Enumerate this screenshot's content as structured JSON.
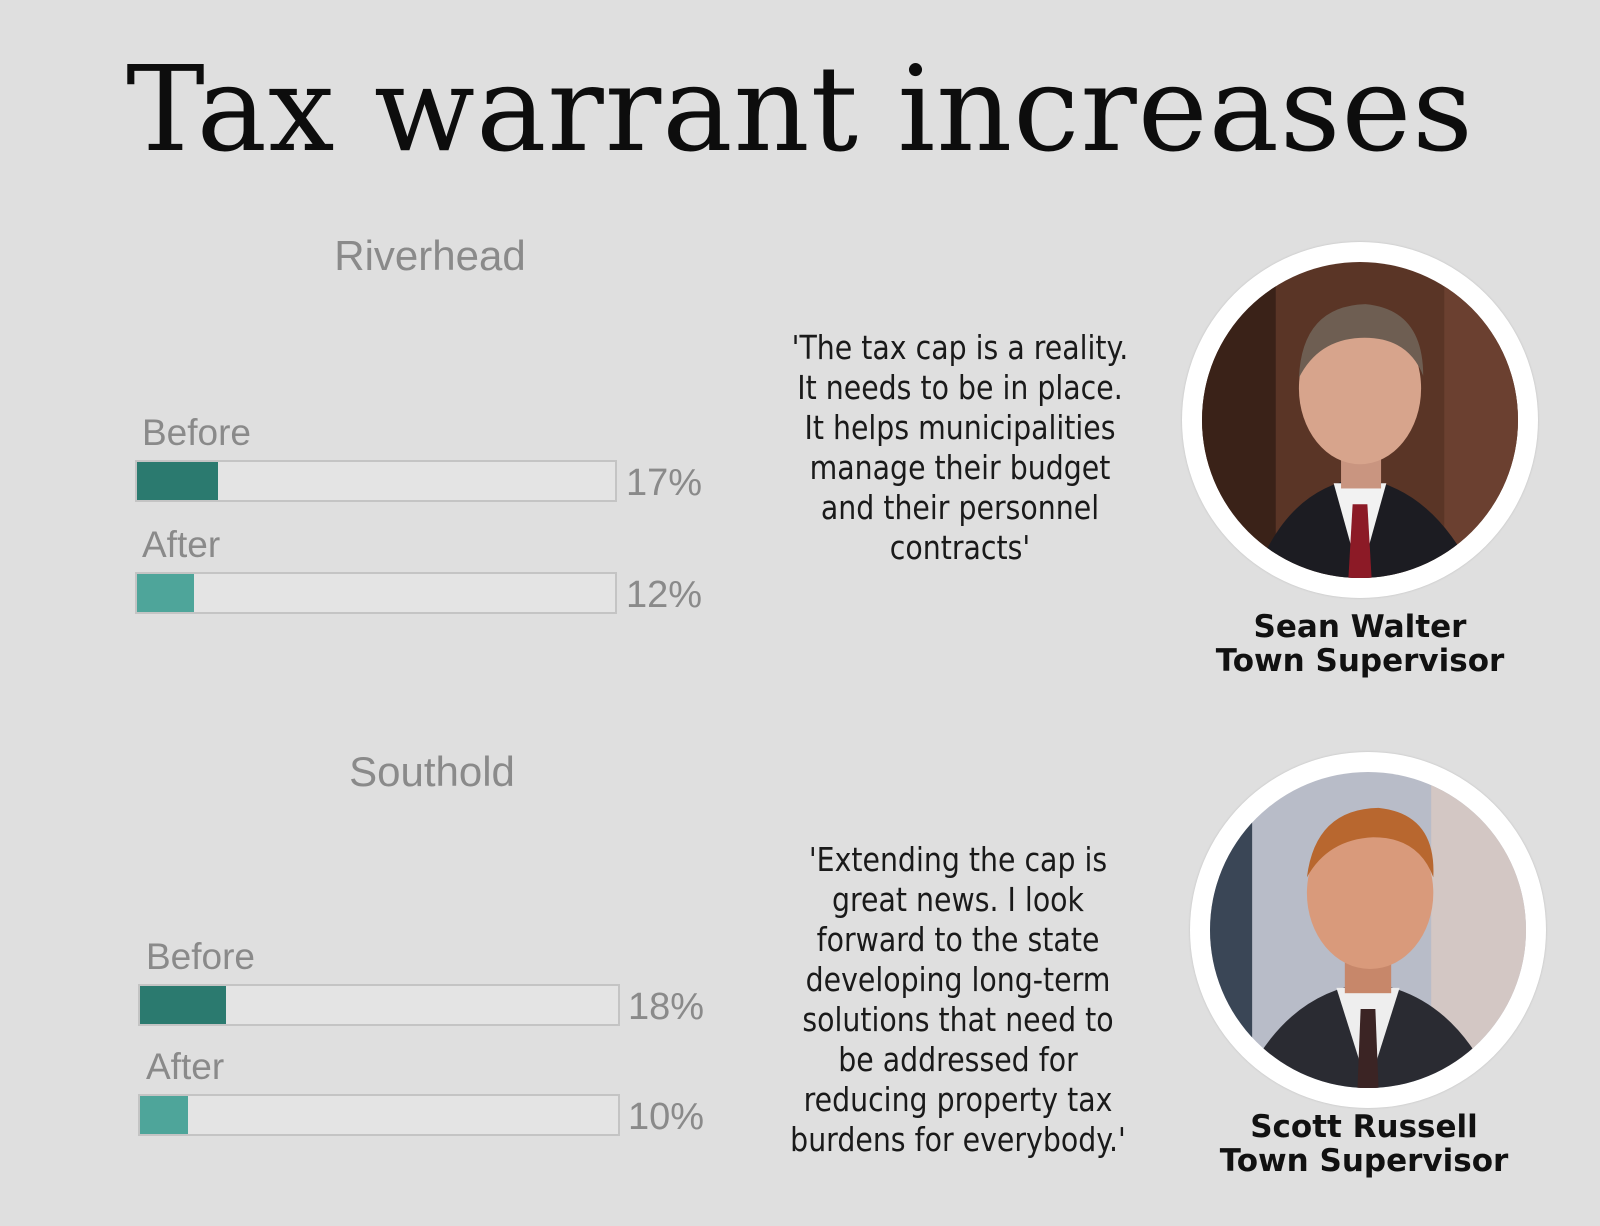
{
  "title": "Tax warrant increases",
  "chart_data": [
    {
      "type": "bar",
      "orientation": "horizontal",
      "title": "Riverhead",
      "categories": [
        "Before",
        "After"
      ],
      "values": [
        17,
        12
      ],
      "value_labels": [
        "17%",
        "12%"
      ],
      "unit": "%",
      "xlim": [
        0,
        100
      ],
      "colors": [
        "#2b7a6f",
        "#4ea59a"
      ]
    },
    {
      "type": "bar",
      "orientation": "horizontal",
      "title": "Southold",
      "categories": [
        "Before",
        "After"
      ],
      "values": [
        18,
        10
      ],
      "value_labels": [
        "18%",
        "10%"
      ],
      "unit": "%",
      "xlim": [
        0,
        100
      ],
      "colors": [
        "#2b7a6f",
        "#4ea59a"
      ]
    }
  ],
  "quotes": [
    {
      "text": "'The tax cap is a reality.\nIt needs to be in place.\nIt helps municipalities\nmanage their budget\nand their personnel\ncontracts'",
      "name": "Sean Walter",
      "role": "Town Supervisor"
    },
    {
      "text": "'Extending the cap is\ngreat news. I look\nforward to the state\ndeveloping long-term\nsolutions that need to\nbe addressed for\nreducing property tax\nburdens for everybody.'",
      "name": "Scott Russell",
      "role": "Town Supervisor"
    }
  ]
}
